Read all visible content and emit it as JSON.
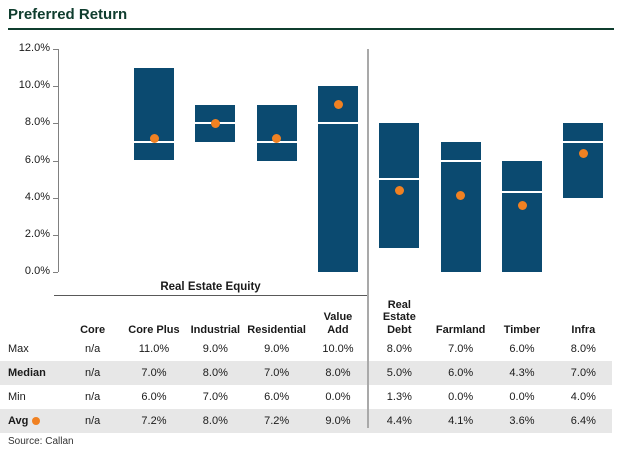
{
  "header": {
    "title": "Preferred Return"
  },
  "source_note": "Source: Callan",
  "colors": {
    "bar": "#0B4A70",
    "avg_dot": "#F08122",
    "title": "#0F3D2E",
    "divider": "#A9A9A9",
    "row_shade": "#E7E7E7",
    "median_line": "#FFFFFF",
    "axis": "#808080"
  },
  "chart_data": {
    "type": "bar",
    "subtype": "floating-range-bars-with-median-line-and-average-dot",
    "title": "Preferred Return",
    "xlabel": "",
    "ylabel": "",
    "ylim": [
      0,
      12
    ],
    "grid": false,
    "legend_position": "none",
    "y_ticks": [
      {
        "value": 12,
        "label": "12.0%"
      },
      {
        "value": 10,
        "label": "10.0%"
      },
      {
        "value": 8,
        "label": "8.0%"
      },
      {
        "value": 6,
        "label": "6.0%"
      },
      {
        "value": 4,
        "label": "4.0%"
      },
      {
        "value": 2,
        "label": "2.0%"
      },
      {
        "value": 0,
        "label": "0.0%"
      }
    ],
    "categories": [
      "Core",
      "Core Plus",
      "Industrial",
      "Residential",
      "Value Add",
      "Real Estate Debt",
      "Farmland",
      "Timber",
      "Infra"
    ],
    "group": {
      "label": "Real Estate Equity",
      "span_start": 0,
      "span_end": 4
    },
    "series": [
      {
        "name": "Max",
        "values": [
          null,
          11.0,
          9.0,
          9.0,
          10.0,
          8.0,
          7.0,
          6.0,
          8.0
        ]
      },
      {
        "name": "Median",
        "values": [
          null,
          7.0,
          8.0,
          7.0,
          8.0,
          5.0,
          6.0,
          4.3,
          7.0
        ]
      },
      {
        "name": "Min",
        "values": [
          null,
          6.0,
          7.0,
          6.0,
          0.0,
          1.3,
          0.0,
          0.0,
          4.0
        ]
      },
      {
        "name": "Avg",
        "values": [
          null,
          7.2,
          8.0,
          7.2,
          9.0,
          4.4,
          4.1,
          3.6,
          6.4
        ]
      }
    ]
  },
  "table": {
    "group_header": "Real Estate Equity",
    "column_headers": [
      "Core",
      "Core Plus",
      "Industrial",
      "Residential",
      "Value\nAdd",
      "Real\nEstate\nDebt",
      "Farmland",
      "Timber",
      "Infra"
    ],
    "rows": [
      {
        "label": "Max",
        "bold": false,
        "shaded": false,
        "dot": false,
        "values": [
          "n/a",
          "11.0%",
          "9.0%",
          "9.0%",
          "10.0%",
          "8.0%",
          "7.0%",
          "6.0%",
          "8.0%"
        ]
      },
      {
        "label": "Median",
        "bold": true,
        "shaded": true,
        "dot": false,
        "values": [
          "n/a",
          "7.0%",
          "8.0%",
          "7.0%",
          "8.0%",
          "5.0%",
          "6.0%",
          "4.3%",
          "7.0%"
        ]
      },
      {
        "label": "Min",
        "bold": false,
        "shaded": false,
        "dot": false,
        "values": [
          "n/a",
          "6.0%",
          "7.0%",
          "6.0%",
          "0.0%",
          "1.3%",
          "0.0%",
          "0.0%",
          "4.0%"
        ]
      },
      {
        "label": "Avg",
        "bold": true,
        "shaded": true,
        "dot": true,
        "values": [
          "n/a",
          "7.2%",
          "8.0%",
          "7.2%",
          "9.0%",
          "4.4%",
          "4.1%",
          "3.6%",
          "6.4%"
        ]
      }
    ]
  }
}
